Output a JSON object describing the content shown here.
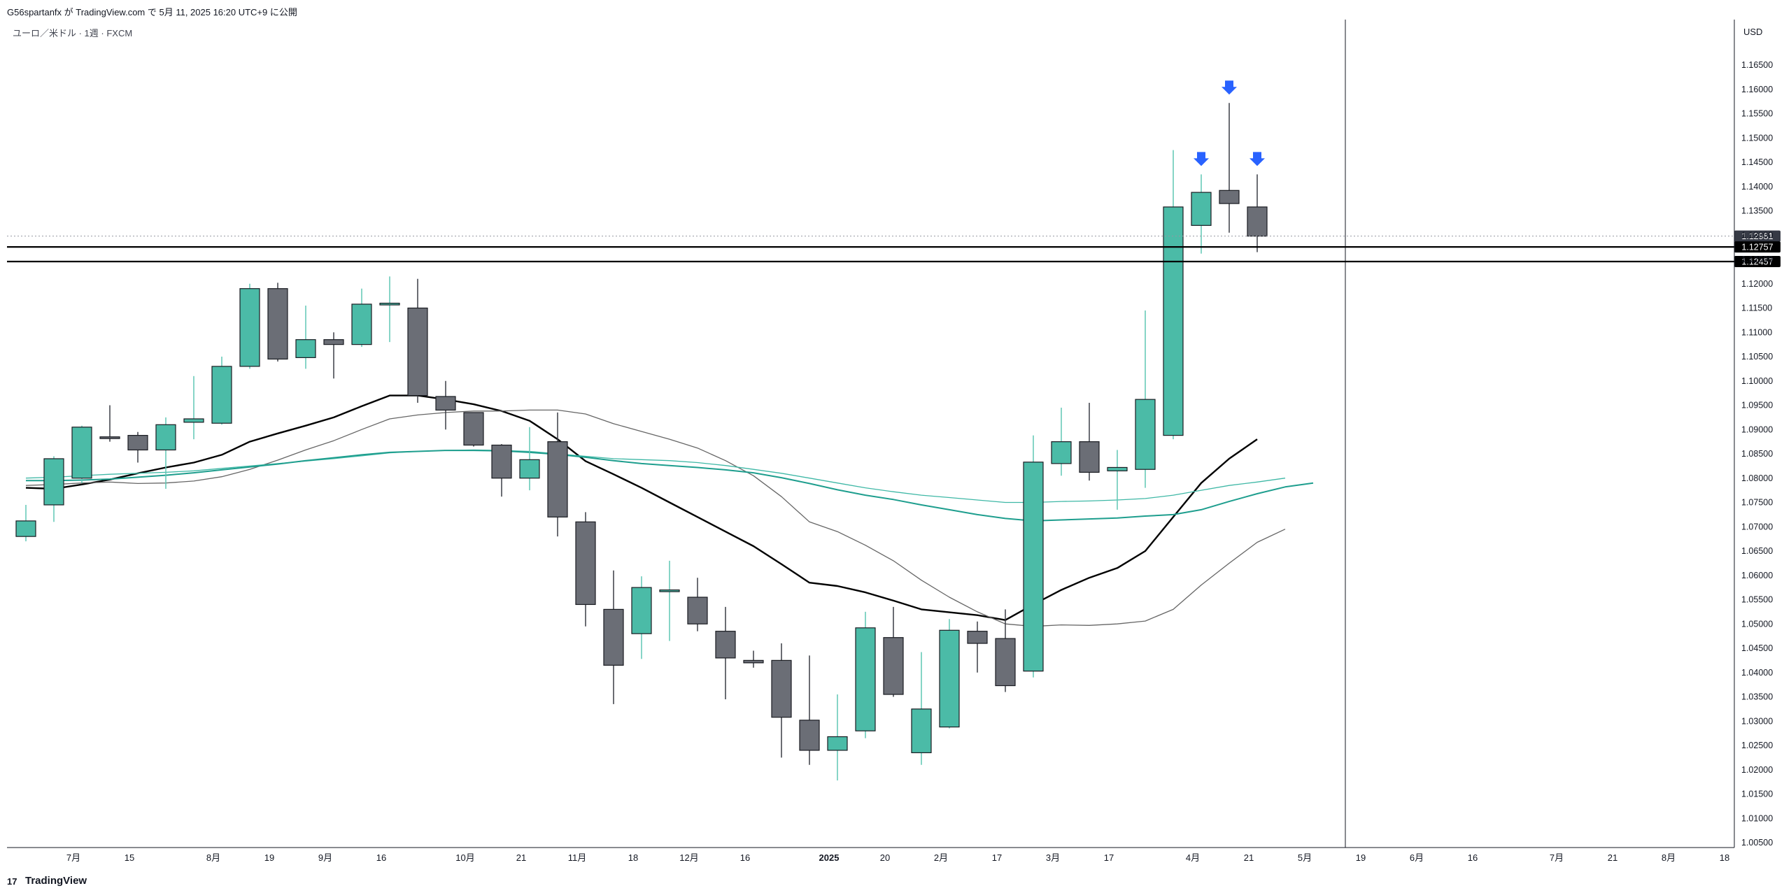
{
  "header": {
    "publisher": "G56spartanfx が TradingView.com で 5月 11, 2025 16:20 UTC+9 に公開"
  },
  "symbol_line": "ユーロ／米ドル · 1週 · FXCM",
  "footer": {
    "logo_mark": "17",
    "brand": "TradingView"
  },
  "chart_data": {
    "type": "candlestick",
    "currency_label": "USD",
    "y_ticks": [
      "1.16500",
      "1.16000",
      "1.15500",
      "1.15000",
      "1.14500",
      "1.14000",
      "1.13500",
      "1.13000",
      "1.12500",
      "1.12000",
      "1.11500",
      "1.11000",
      "1.10500",
      "1.10000",
      "1.09500",
      "1.09000",
      "1.08500",
      "1.08000",
      "1.07500",
      "1.07000",
      "1.06500",
      "1.06000",
      "1.05500",
      "1.05000",
      "1.04500",
      "1.04000",
      "1.03500",
      "1.03000",
      "1.02500",
      "1.02000",
      "1.01500",
      "1.01000",
      "1.00500"
    ],
    "ylim": [
      1.0045,
      1.1675
    ],
    "x_ticks": [
      {
        "i": 1.7,
        "label": "7月",
        "bold": false
      },
      {
        "i": 3.7,
        "label": "15",
        "bold": false
      },
      {
        "i": 6.7,
        "label": "8月",
        "bold": false
      },
      {
        "i": 8.7,
        "label": "19",
        "bold": false
      },
      {
        "i": 10.7,
        "label": "9月",
        "bold": false
      },
      {
        "i": 12.7,
        "label": "16",
        "bold": false
      },
      {
        "i": 15.7,
        "label": "10月",
        "bold": false
      },
      {
        "i": 17.7,
        "label": "21",
        "bold": false
      },
      {
        "i": 19.7,
        "label": "11月",
        "bold": false
      },
      {
        "i": 21.7,
        "label": "18",
        "bold": false
      },
      {
        "i": 23.7,
        "label": "12月",
        "bold": false
      },
      {
        "i": 25.7,
        "label": "16",
        "bold": false
      },
      {
        "i": 28.7,
        "label": "2025",
        "bold": true
      },
      {
        "i": 30.7,
        "label": "20",
        "bold": false
      },
      {
        "i": 32.7,
        "label": "2月",
        "bold": false
      },
      {
        "i": 34.7,
        "label": "17",
        "bold": false
      },
      {
        "i": 36.7,
        "label": "3月",
        "bold": false
      },
      {
        "i": 38.7,
        "label": "17",
        "bold": false
      },
      {
        "i": 41.7,
        "label": "4月",
        "bold": false
      },
      {
        "i": 43.7,
        "label": "21",
        "bold": false
      },
      {
        "i": 45.7,
        "label": "5月",
        "bold": false
      },
      {
        "i": 47.7,
        "label": "19",
        "bold": false
      },
      {
        "i": 49.7,
        "label": "6月",
        "bold": false
      },
      {
        "i": 51.7,
        "label": "16",
        "bold": false
      },
      {
        "i": 54.7,
        "label": "7月",
        "bold": false
      },
      {
        "i": 56.7,
        "label": "21",
        "bold": false
      },
      {
        "i": 58.7,
        "label": "8月",
        "bold": false
      },
      {
        "i": 60.7,
        "label": "18",
        "bold": false
      }
    ],
    "candles": [
      {
        "o": 1.068,
        "h": 1.0745,
        "l": 1.067,
        "c": 1.0712
      },
      {
        "o": 1.0745,
        "h": 1.0845,
        "l": 1.071,
        "c": 1.084
      },
      {
        "o": 1.08,
        "h": 1.0908,
        "l": 1.079,
        "c": 1.0905
      },
      {
        "o": 1.0885,
        "h": 1.095,
        "l": 1.0875,
        "c": 1.0882
      },
      {
        "o": 1.0888,
        "h": 1.0895,
        "l": 1.0832,
        "c": 1.0858
      },
      {
        "o": 1.0858,
        "h": 1.0925,
        "l": 1.0778,
        "c": 1.091
      },
      {
        "o": 1.0915,
        "h": 1.101,
        "l": 1.088,
        "c": 1.0922
      },
      {
        "o": 1.0913,
        "h": 1.105,
        "l": 1.091,
        "c": 1.103
      },
      {
        "o": 1.103,
        "h": 1.12,
        "l": 1.1025,
        "c": 1.119
      },
      {
        "o": 1.119,
        "h": 1.1202,
        "l": 1.104,
        "c": 1.1045
      },
      {
        "o": 1.1048,
        "h": 1.1155,
        "l": 1.1025,
        "c": 1.1085
      },
      {
        "o": 1.1085,
        "h": 1.11,
        "l": 1.1005,
        "c": 1.1075
      },
      {
        "o": 1.1075,
        "h": 1.119,
        "l": 1.107,
        "c": 1.1158
      },
      {
        "o": 1.1158,
        "h": 1.1215,
        "l": 1.108,
        "c": 1.116
      },
      {
        "o": 1.115,
        "h": 1.121,
        "l": 1.0955,
        "c": 1.097
      },
      {
        "o": 1.0968,
        "h": 1.1,
        "l": 1.09,
        "c": 1.094
      },
      {
        "o": 1.0935,
        "h": 1.0935,
        "l": 1.0865,
        "c": 1.0868
      },
      {
        "o": 1.0868,
        "h": 1.087,
        "l": 1.0762,
        "c": 1.08
      },
      {
        "o": 1.08,
        "h": 1.0905,
        "l": 1.0775,
        "c": 1.0838
      },
      {
        "o": 1.0875,
        "h": 1.0935,
        "l": 1.068,
        "c": 1.072
      },
      {
        "o": 1.071,
        "h": 1.073,
        "l": 1.0495,
        "c": 1.054
      },
      {
        "o": 1.053,
        "h": 1.061,
        "l": 1.0335,
        "c": 1.0415
      },
      {
        "o": 1.048,
        "h": 1.0598,
        "l": 1.0428,
        "c": 1.0575
      },
      {
        "o": 1.057,
        "h": 1.063,
        "l": 1.0465,
        "c": 1.057
      },
      {
        "o": 1.0555,
        "h": 1.0595,
        "l": 1.0485,
        "c": 1.05
      },
      {
        "o": 1.0485,
        "h": 1.0535,
        "l": 1.0345,
        "c": 1.043
      },
      {
        "o": 1.0425,
        "h": 1.0445,
        "l": 1.041,
        "c": 1.042
      },
      {
        "o": 1.0425,
        "h": 1.046,
        "l": 1.0225,
        "c": 1.0308
      },
      {
        "o": 1.0302,
        "h": 1.0435,
        "l": 1.021,
        "c": 1.024
      },
      {
        "o": 1.024,
        "h": 1.0355,
        "l": 1.0178,
        "c": 1.0268
      },
      {
        "o": 1.028,
        "h": 1.0525,
        "l": 1.0265,
        "c": 1.0492
      },
      {
        "o": 1.0472,
        "h": 1.0535,
        "l": 1.035,
        "c": 1.0355
      },
      {
        "o": 1.0235,
        "h": 1.0442,
        "l": 1.021,
        "c": 1.0325
      },
      {
        "o": 1.0288,
        "h": 1.051,
        "l": 1.0285,
        "c": 1.0487
      },
      {
        "o": 1.0485,
        "h": 1.0505,
        "l": 1.04,
        "c": 1.046
      },
      {
        "o": 1.047,
        "h": 1.053,
        "l": 1.036,
        "c": 1.0373
      },
      {
        "o": 1.0403,
        "h": 1.0888,
        "l": 1.039,
        "c": 1.0833
      },
      {
        "o": 1.083,
        "h": 1.0945,
        "l": 1.0805,
        "c": 1.0875
      },
      {
        "o": 1.0875,
        "h": 1.0955,
        "l": 1.0795,
        "c": 1.0812
      },
      {
        "o": 1.0815,
        "h": 1.0858,
        "l": 1.0735,
        "c": 1.0822
      },
      {
        "o": 1.0818,
        "h": 1.1145,
        "l": 1.078,
        "c": 1.0962
      },
      {
        "o": 1.0888,
        "h": 1.1475,
        "l": 1.088,
        "c": 1.1358
      },
      {
        "o": 1.132,
        "h": 1.1425,
        "l": 1.1262,
        "c": 1.1388
      },
      {
        "o": 1.1392,
        "h": 1.1572,
        "l": 1.1305,
        "c": 1.1365
      },
      {
        "o": 1.1358,
        "h": 1.1425,
        "l": 1.1265,
        "c": 1.1298
      }
    ],
    "ma_lines": [
      {
        "name": "",
        "color": "#000000",
        "width": 2.4,
        "values": [
          1.078,
          1.0778,
          1.0787,
          1.0797,
          1.081,
          1.0822,
          1.0832,
          1.0848,
          1.0875,
          1.0892,
          1.0908,
          1.0925,
          1.0948,
          1.097,
          1.097,
          1.0962,
          1.0952,
          1.0938,
          1.0918,
          1.088,
          1.0835,
          1.0808,
          1.078,
          1.075,
          1.072,
          1.069,
          1.066,
          1.0623,
          1.0585,
          1.0578,
          1.0565,
          1.0548,
          1.053,
          1.0524,
          1.0518,
          1.0508,
          1.054,
          1.057,
          1.0595,
          1.0615,
          1.065,
          1.072,
          1.079,
          1.084,
          1.088
        ]
      },
      {
        "name": "",
        "color": "#666666",
        "width": 1.3,
        "values": [
          1.0785,
          1.0787,
          1.079,
          1.0792,
          1.0789,
          1.079,
          1.0794,
          1.0803,
          1.0818,
          1.0837,
          1.0858,
          1.0877,
          1.09,
          1.0922,
          1.093,
          1.0935,
          1.0938,
          1.0938,
          1.094,
          1.094,
          1.0932,
          1.0912,
          1.0896,
          1.088,
          1.0862,
          1.0836,
          1.0805,
          1.0762,
          1.071,
          1.069,
          1.0662,
          1.063,
          1.059,
          1.0555,
          1.0525,
          1.05,
          1.0495,
          1.0498,
          1.0497,
          1.05,
          1.0506,
          1.053,
          1.058,
          1.0625,
          1.0668,
          1.0695
        ]
      },
      {
        "name": "",
        "color": "#3fb8a6",
        "width": 1.3,
        "values": [
          1.08,
          1.0802,
          1.0805,
          1.0808,
          1.081,
          1.0812,
          1.0815,
          1.082,
          1.0825,
          1.083,
          1.0835,
          1.084,
          1.0846,
          1.0852,
          1.0855,
          1.0857,
          1.0858,
          1.0857,
          1.0855,
          1.085,
          1.0845,
          1.084,
          1.0838,
          1.0836,
          1.0832,
          1.0826,
          1.0818,
          1.081,
          1.08,
          1.079,
          1.078,
          1.0772,
          1.0765,
          1.076,
          1.0755,
          1.075,
          1.075,
          1.0752,
          1.0753,
          1.0755,
          1.0758,
          1.0765,
          1.0775,
          1.0785,
          1.0792,
          1.08
        ]
      },
      {
        "name": "",
        "color": "#1e9e8e",
        "width": 2.0,
        "values": [
          1.0795,
          1.0795,
          1.0796,
          1.0798,
          1.0802,
          1.0806,
          1.0811,
          1.0817,
          1.0823,
          1.0829,
          1.0836,
          1.0842,
          1.0848,
          1.0853,
          1.0855,
          1.0857,
          1.0857,
          1.0856,
          1.0853,
          1.0849,
          1.0843,
          1.0836,
          1.083,
          1.0826,
          1.0822,
          1.0817,
          1.0811,
          1.0801,
          1.0789,
          1.0776,
          1.0765,
          1.0756,
          1.0745,
          1.0735,
          1.0725,
          1.0717,
          1.0712,
          1.0714,
          1.0716,
          1.0718,
          1.0722,
          1.0725,
          1.0735,
          1.0752,
          1.0768,
          1.0782,
          1.079
        ]
      }
    ],
    "price_lines": [
      {
        "value": 1.12981,
        "label": "1.12981",
        "style": "dotted"
      },
      {
        "value": 1.12757,
        "label": "1.12757",
        "style": "solid"
      },
      {
        "value": 1.12457,
        "label": "1.12457",
        "style": "solid"
      }
    ],
    "arrows": [
      42,
      43,
      44
    ]
  }
}
